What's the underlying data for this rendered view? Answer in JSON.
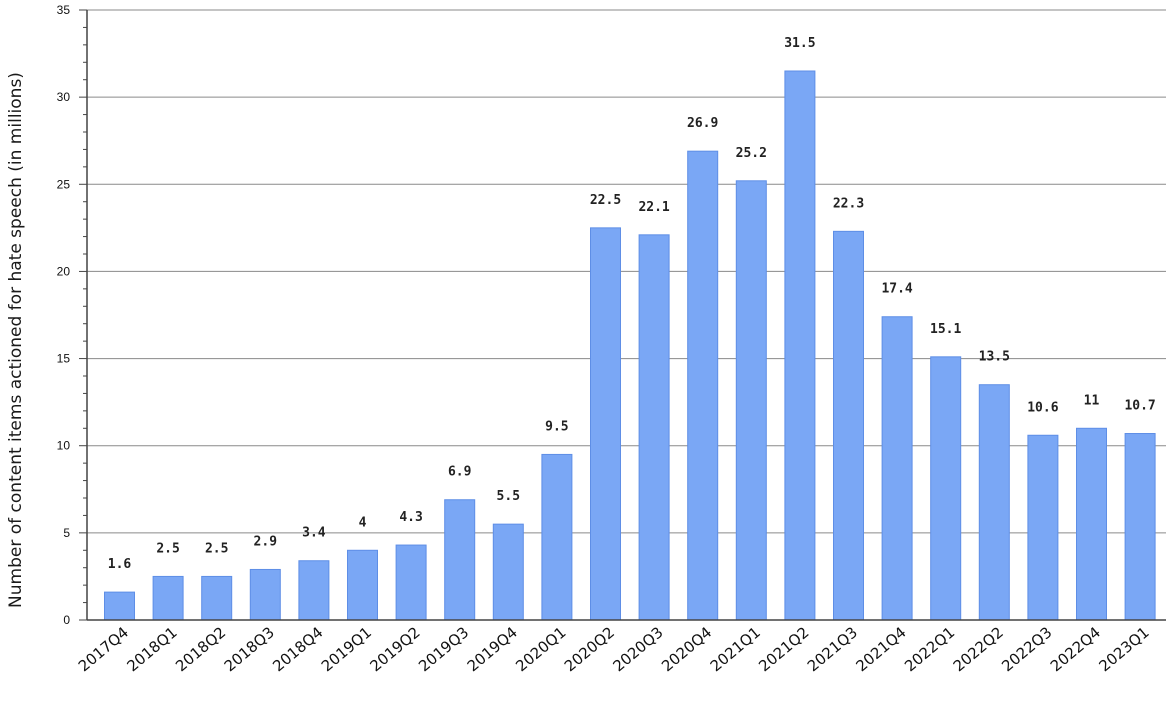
{
  "chart_data": {
    "type": "bar",
    "title": "",
    "xlabel": "",
    "ylabel": "Number of content items actioned for hate speech (in millions)",
    "ylim": [
      0,
      35
    ],
    "yticks": [
      "0",
      "5",
      "10",
      "15",
      "20",
      "25",
      "30",
      "35"
    ],
    "grid": true,
    "legend": "none",
    "bar_color": "#7aa7f5",
    "bar_edge_color": "#5e8ee6",
    "categories": [
      "2017Q4",
      "2018Q1",
      "2018Q2",
      "2018Q3",
      "2018Q4",
      "2019Q1",
      "2019Q2",
      "2019Q3",
      "2019Q4",
      "2020Q1",
      "2020Q2",
      "2020Q3",
      "2020Q4",
      "2021Q1",
      "2021Q2",
      "2021Q3",
      "2021Q4",
      "2022Q1",
      "2022Q2",
      "2022Q3",
      "2022Q4",
      "2023Q1"
    ],
    "values": [
      1.6,
      2.5,
      2.5,
      2.9,
      3.4,
      4,
      4.3,
      6.9,
      5.5,
      9.5,
      22.5,
      22.1,
      26.9,
      25.2,
      31.5,
      22.3,
      17.4,
      15.1,
      13.5,
      10.6,
      11,
      10.7
    ],
    "data_labels": [
      "1.6",
      "2.5",
      "2.5",
      "2.9",
      "3.4",
      "4",
      "4.3",
      "6.9",
      "5.5",
      "9.5",
      "22.5",
      "22.1",
      "26.9",
      "25.2",
      "31.5",
      "22.3",
      "17.4",
      "15.1",
      "13.5",
      "10.6",
      "11",
      "10.7"
    ]
  }
}
